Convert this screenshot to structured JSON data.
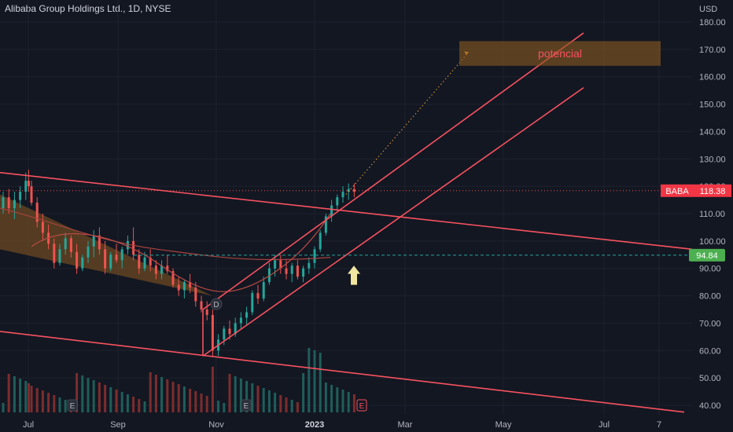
{
  "header": {
    "title": "Alibaba Group Holdings Ltd., 1D, NYSE"
  },
  "colors": {
    "background": "#131722",
    "up": "#26a69a",
    "down": "#ef5350",
    "trendline": "#f7525f",
    "projection": "#e8a33d",
    "target_zone": "#8a5a20"
  },
  "chart_data": {
    "type": "candlestick",
    "title": "Alibaba Group Holdings Ltd., 1D, NYSE",
    "currency": "USD",
    "y_ticks": [
      "180.00",
      "170.00",
      "160.00",
      "150.00",
      "140.00",
      "130.00",
      "120.00",
      "110.00",
      "100.00",
      "90.00",
      "80.00",
      "70.00",
      "60.00",
      "50.00",
      "40.00"
    ],
    "ylim": [
      37,
      190
    ],
    "x_ticks": [
      "Jul",
      "Sep",
      "Nov",
      "2023",
      "Mar",
      "May",
      "Jul",
      "7"
    ],
    "last_price": {
      "symbol": "BABA",
      "value": "118.38"
    },
    "level_label": "94.84",
    "target_zone": {
      "label": "potencial",
      "low": 164,
      "high": 173
    },
    "series": [
      {
        "name": "BABA",
        "values": [
          [
            0,
            112,
            118,
            110,
            116
          ],
          [
            2,
            116,
            119,
            110,
            112
          ],
          [
            4,
            112,
            118,
            108,
            115
          ],
          [
            6,
            115,
            120,
            112,
            118
          ],
          [
            8,
            118,
            125,
            115,
            122
          ],
          [
            9,
            122,
            126,
            118,
            120
          ],
          [
            10,
            120,
            122,
            113,
            114
          ],
          [
            12,
            114,
            116,
            105,
            107
          ],
          [
            14,
            107,
            110,
            100,
            103
          ],
          [
            16,
            103,
            106,
            97,
            99
          ],
          [
            18,
            99,
            101,
            90,
            92
          ],
          [
            20,
            92,
            99,
            91,
            97
          ],
          [
            22,
            97,
            103,
            95,
            101
          ],
          [
            24,
            101,
            102,
            94,
            96
          ],
          [
            26,
            96,
            99,
            88,
            90
          ],
          [
            28,
            90,
            95,
            89,
            94
          ],
          [
            30,
            94,
            100,
            92,
            98
          ],
          [
            32,
            98,
            104,
            94,
            102
          ],
          [
            34,
            102,
            105,
            95,
            97
          ],
          [
            36,
            97,
            100,
            88,
            90
          ],
          [
            38,
            90,
            96,
            89,
            95
          ],
          [
            40,
            95,
            99,
            92,
            93
          ],
          [
            42,
            93,
            98,
            90,
            97
          ],
          [
            44,
            97,
            102,
            95,
            100
          ],
          [
            46,
            100,
            105,
            93,
            95
          ],
          [
            48,
            95,
            97,
            88,
            90
          ],
          [
            50,
            90,
            96,
            89,
            94
          ],
          [
            52,
            94,
            97,
            89,
            91
          ],
          [
            54,
            91,
            93,
            86,
            88
          ],
          [
            56,
            88,
            93,
            86,
            91
          ],
          [
            58,
            91,
            95,
            88,
            89
          ],
          [
            60,
            89,
            90,
            83,
            84
          ],
          [
            62,
            84,
            87,
            80,
            82
          ],
          [
            64,
            82,
            86,
            79,
            85
          ],
          [
            66,
            85,
            88,
            81,
            83
          ],
          [
            68,
            83,
            85,
            76,
            78
          ],
          [
            70,
            78,
            80,
            74,
            75
          ],
          [
            72,
            75,
            78,
            71,
            73
          ],
          [
            74,
            73,
            75,
            58,
            60
          ],
          [
            76,
            60,
            66,
            58,
            64
          ],
          [
            78,
            64,
            69,
            62,
            68
          ],
          [
            80,
            68,
            71,
            64,
            66
          ],
          [
            82,
            66,
            72,
            65,
            70
          ],
          [
            84,
            70,
            74,
            68,
            72
          ],
          [
            86,
            72,
            76,
            69,
            74
          ],
          [
            88,
            74,
            82,
            73,
            81
          ],
          [
            90,
            81,
            84,
            77,
            79
          ],
          [
            92,
            79,
            87,
            78,
            85
          ],
          [
            94,
            85,
            92,
            84,
            90
          ],
          [
            96,
            90,
            95,
            87,
            93
          ],
          [
            98,
            93,
            95,
            88,
            90
          ],
          [
            100,
            90,
            93,
            86,
            88
          ],
          [
            102,
            88,
            92,
            85,
            91
          ],
          [
            104,
            91,
            93,
            86,
            87
          ],
          [
            106,
            87,
            91,
            85,
            90
          ],
          [
            108,
            90,
            94,
            88,
            92
          ],
          [
            110,
            92,
            98,
            90,
            97
          ],
          [
            112,
            97,
            104,
            96,
            103
          ],
          [
            114,
            103,
            110,
            102,
            109
          ],
          [
            116,
            109,
            115,
            107,
            113
          ],
          [
            118,
            113,
            117,
            111,
            116
          ],
          [
            120,
            116,
            120,
            114,
            118
          ],
          [
            122,
            118,
            121,
            115,
            119
          ],
          [
            124,
            119,
            121,
            116,
            118
          ]
        ]
      }
    ]
  }
}
